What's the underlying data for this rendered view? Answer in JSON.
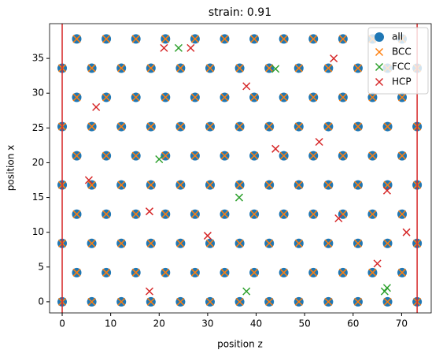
{
  "chart_data": {
    "type": "scatter",
    "title": "strain: 0.91",
    "x_label": "position z",
    "y_label": "position x",
    "xlim": [
      -2.6,
      76.1
    ],
    "ylim": [
      -1.6,
      40
    ],
    "xticks": [
      0,
      10,
      20,
      30,
      40,
      50,
      60,
      70
    ],
    "yticks": [
      0,
      5,
      10,
      15,
      20,
      25,
      30,
      35
    ],
    "vlines": [
      0,
      73.2
    ],
    "vline_color": "#d62728",
    "legend": "upper right",
    "series": [
      {
        "name": "all",
        "color": "#1f77b4",
        "marker": "o",
        "x": [
          0,
          6.1,
          12.2,
          18.3,
          24.4,
          30.5,
          36.6,
          42.7,
          48.8,
          54.9,
          61,
          67.1,
          73.2,
          3,
          9.1,
          15.2,
          21.3,
          27.4,
          33.5,
          39.6,
          45.7,
          51.8,
          57.9,
          64,
          70.1,
          0,
          6.1,
          12.2,
          18.3,
          24.4,
          30.5,
          36.6,
          42.7,
          48.8,
          54.9,
          61,
          67.1,
          73.2,
          3,
          9.1,
          15.2,
          21.3,
          27.4,
          33.5,
          39.6,
          45.7,
          51.8,
          57.9,
          64,
          70.1,
          0,
          6.1,
          12.2,
          18.3,
          24.4,
          30.5,
          36.6,
          42.7,
          48.8,
          54.9,
          61,
          67.1,
          73.2,
          3,
          9.1,
          15.2,
          21.3,
          27.4,
          33.5,
          39.6,
          45.7,
          51.8,
          57.9,
          64,
          70.1,
          0,
          6.1,
          12.2,
          18.3,
          24.4,
          30.5,
          36.6,
          42.7,
          48.8,
          54.9,
          61,
          67.1,
          73.2,
          3,
          9.1,
          15.2,
          21.3,
          27.4,
          33.5,
          39.6,
          45.7,
          51.8,
          57.9,
          64,
          70.1,
          0,
          6.1,
          12.2,
          18.3,
          24.4,
          30.5,
          36.6,
          42.7,
          48.8,
          54.9,
          61,
          67.1,
          73.2,
          3,
          9.1,
          15.2,
          21.3,
          27.4,
          33.5,
          39.6,
          45.7,
          51.8,
          57.9,
          64,
          70.1
        ],
        "y": [
          0,
          0,
          0,
          0,
          0,
          0,
          0,
          0,
          0,
          0,
          0,
          0,
          0,
          4.2,
          4.2,
          4.2,
          4.2,
          4.2,
          4.2,
          4.2,
          4.2,
          4.2,
          4.2,
          4.2,
          4.2,
          8.4,
          8.4,
          8.4,
          8.4,
          8.4,
          8.4,
          8.4,
          8.4,
          8.4,
          8.4,
          8.4,
          8.4,
          8.4,
          12.6,
          12.6,
          12.6,
          12.6,
          12.6,
          12.6,
          12.6,
          12.6,
          12.6,
          12.6,
          12.6,
          12.6,
          16.8,
          16.8,
          16.8,
          16.8,
          16.8,
          16.8,
          16.8,
          16.8,
          16.8,
          16.8,
          16.8,
          16.8,
          16.8,
          21,
          21,
          21,
          21,
          21,
          21,
          21,
          21,
          21,
          21,
          21,
          21,
          25.2,
          25.2,
          25.2,
          25.2,
          25.2,
          25.2,
          25.2,
          25.2,
          25.2,
          25.2,
          25.2,
          25.2,
          25.2,
          29.4,
          29.4,
          29.4,
          29.4,
          29.4,
          29.4,
          29.4,
          29.4,
          29.4,
          29.4,
          29.4,
          29.4,
          33.6,
          33.6,
          33.6,
          33.6,
          33.6,
          33.6,
          33.6,
          33.6,
          33.6,
          33.6,
          33.6,
          33.6,
          33.6,
          37.8,
          37.8,
          37.8,
          37.8,
          37.8,
          37.8,
          37.8,
          37.8,
          37.8,
          37.8,
          37.8,
          37.8
        ]
      },
      {
        "name": "BCC",
        "color": "#ff7f0e",
        "marker": "x",
        "x": [
          0,
          6.1,
          12.2,
          18.3,
          24.4,
          30.5,
          36.6,
          42.7,
          48.8,
          54.9,
          61,
          67.1,
          73.2,
          3,
          9.1,
          15.2,
          21.3,
          27.4,
          33.5,
          39.6,
          45.7,
          51.8,
          57.9,
          64,
          70.1,
          0,
          6.1,
          12.2,
          18.3,
          24.4,
          30.5,
          36.6,
          42.7,
          48.8,
          54.9,
          61,
          67.1,
          73.2,
          3,
          9.1,
          15.2,
          21.3,
          27.4,
          33.5,
          39.6,
          45.7,
          51.8,
          57.9,
          64,
          70.1,
          0,
          6.1,
          12.2,
          18.3,
          24.4,
          30.5,
          36.6,
          42.7,
          48.8,
          54.9,
          61,
          67.1,
          73.2,
          3,
          9.1,
          15.2,
          21.3,
          27.4,
          33.5,
          39.6,
          45.7,
          51.8,
          57.9,
          64,
          70.1,
          0,
          6.1,
          12.2,
          18.3,
          24.4,
          30.5,
          36.6,
          42.7,
          48.8,
          54.9,
          61,
          67.1,
          73.2,
          3,
          9.1,
          15.2,
          21.3,
          27.4,
          33.5,
          39.6,
          45.7,
          51.8,
          57.9,
          64,
          70.1,
          0,
          6.1,
          12.2,
          18.3,
          24.4,
          30.5,
          36.6,
          42.7,
          48.8,
          54.9,
          61,
          67.1,
          73.2,
          3,
          9.1,
          15.2,
          21.3,
          27.4,
          33.5,
          39.6,
          45.7,
          51.8,
          57.9,
          64,
          70.1
        ],
        "y": [
          0,
          0,
          0,
          0,
          0,
          0,
          0,
          0,
          0,
          0,
          0,
          0,
          0,
          4.2,
          4.2,
          4.2,
          4.2,
          4.2,
          4.2,
          4.2,
          4.2,
          4.2,
          4.2,
          4.2,
          4.2,
          8.4,
          8.4,
          8.4,
          8.4,
          8.4,
          8.4,
          8.4,
          8.4,
          8.4,
          8.4,
          8.4,
          8.4,
          8.4,
          12.6,
          12.6,
          12.6,
          12.6,
          12.6,
          12.6,
          12.6,
          12.6,
          12.6,
          12.6,
          12.6,
          12.6,
          16.8,
          16.8,
          16.8,
          16.8,
          16.8,
          16.8,
          16.8,
          16.8,
          16.8,
          16.8,
          16.8,
          16.8,
          16.8,
          21,
          21,
          21,
          21,
          21,
          21,
          21,
          21,
          21,
          21,
          21,
          21,
          25.2,
          25.2,
          25.2,
          25.2,
          25.2,
          25.2,
          25.2,
          25.2,
          25.2,
          25.2,
          25.2,
          25.2,
          25.2,
          29.4,
          29.4,
          29.4,
          29.4,
          29.4,
          29.4,
          29.4,
          29.4,
          29.4,
          29.4,
          29.4,
          29.4,
          33.6,
          33.6,
          33.6,
          33.6,
          33.6,
          33.6,
          33.6,
          33.6,
          33.6,
          33.6,
          33.6,
          33.6,
          33.6,
          37.8,
          37.8,
          37.8,
          37.8,
          37.8,
          37.8,
          37.8,
          37.8,
          37.8,
          37.8,
          37.8,
          37.8
        ]
      },
      {
        "name": "FCC",
        "color": "#2ca02c",
        "marker": "x",
        "x": [
          24,
          44,
          20,
          36.5,
          38,
          66.5,
          67
        ],
        "y": [
          36.5,
          33.5,
          20.5,
          15,
          1.5,
          1.5,
          2
        ]
      },
      {
        "name": "HCP",
        "color": "#d62728",
        "marker": "x",
        "x": [
          21,
          26.5,
          56,
          38,
          7,
          44,
          53,
          5.5,
          67,
          18,
          57,
          30,
          71,
          65,
          18
        ],
        "y": [
          36.5,
          36.5,
          35,
          31,
          28,
          22,
          23,
          17.5,
          16,
          13,
          12,
          9.5,
          10,
          5.5,
          1.5
        ]
      }
    ]
  }
}
